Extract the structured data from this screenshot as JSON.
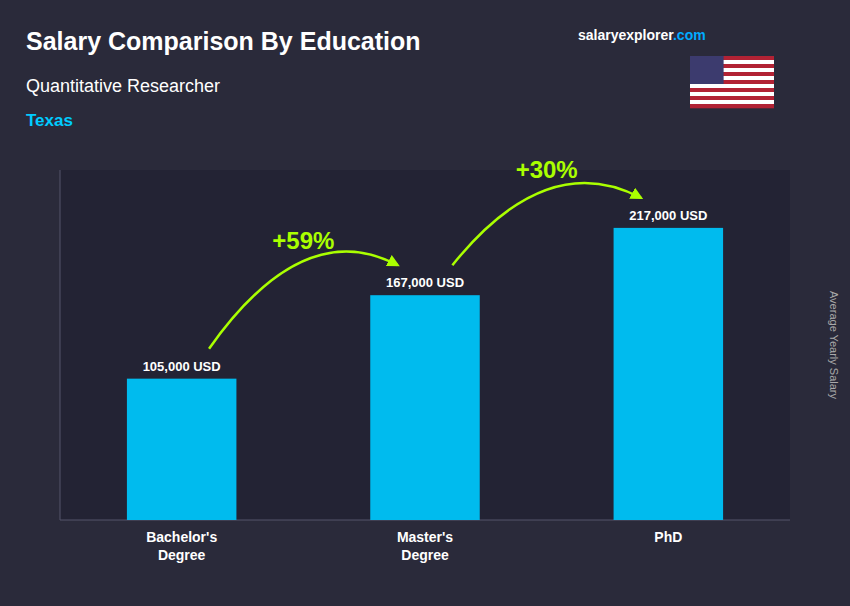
{
  "chart_data": {
    "type": "bar",
    "title": "Salary Comparison By Education",
    "subtitle": "Quantitative Researcher",
    "ylabel": "Average Yearly Salary",
    "annotations": [
      "Texas",
      "salaryexplorer",
      ".com",
      "+59%",
      "+30%"
    ],
    "categories": [
      "Bachelor's\nDegree",
      "Master's\nDegree",
      "PhD"
    ],
    "values": [
      105000,
      167000,
      217000
    ],
    "value_labels": [
      "105,000 USD",
      "167,000 USD",
      "217,000 USD"
    ],
    "color": "#00bbee",
    "ylim": [
      0,
      260000
    ],
    "data_labels": true,
    "tick_labels": "x"
  }
}
